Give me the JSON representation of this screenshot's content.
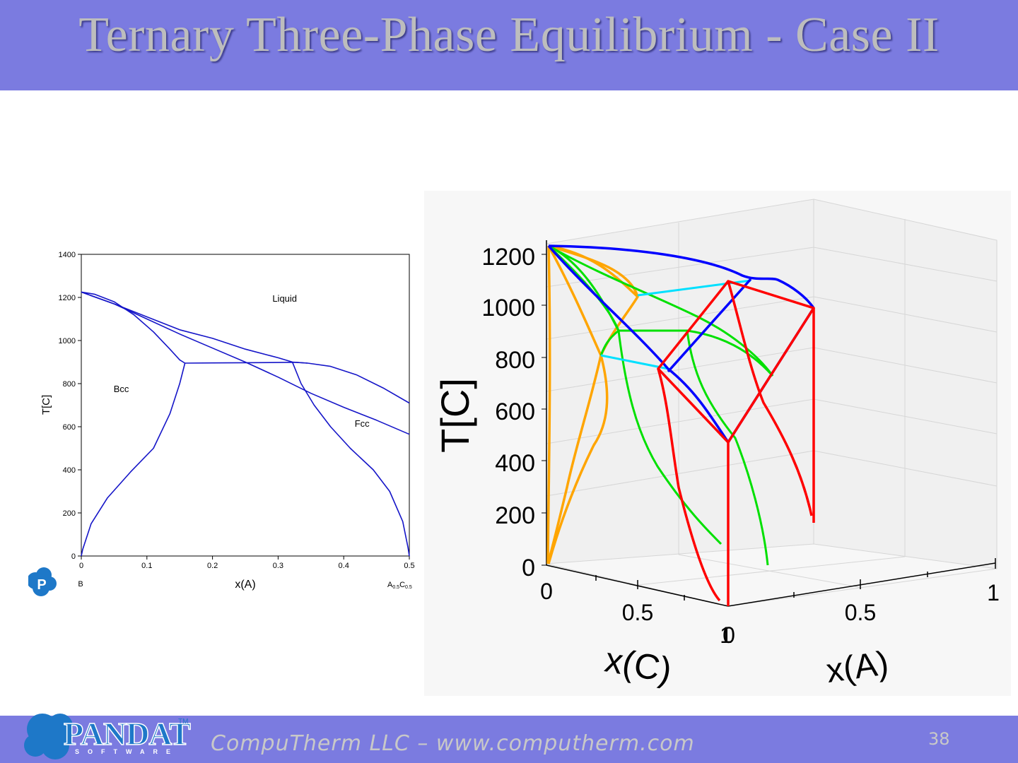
{
  "slide": {
    "title": "Ternary Three-Phase Equilibrium - Case II",
    "footer_text": "CompuTherm LLC – www.computherm.com",
    "page_number": "38",
    "logo": {
      "text": "PANDAT",
      "sub": "SOFTWARE",
      "tm": "TM"
    }
  },
  "chart_data": [
    {
      "type": "line",
      "xlabel": "x(A)",
      "ylabel": "T[C]",
      "xlim": [
        0,
        0.5
      ],
      "ylim": [
        0,
        1400
      ],
      "x_ticks": [
        "0",
        "0.1",
        "0.2",
        "0.3",
        "0.4",
        "0.5"
      ],
      "y_ticks": [
        "0",
        "200",
        "400",
        "600",
        "800",
        "1000",
        "1200",
        "1400"
      ],
      "end_labels": {
        "left": "B",
        "right_base": "A",
        "right_sub1": "0.5",
        "right_mid": "C",
        "right_sub2": "0.5"
      },
      "region_labels": [
        {
          "text": "Liquid",
          "x": 0.31,
          "y": 1180
        },
        {
          "text": "Bcc",
          "x": 0.061,
          "y": 760
        },
        {
          "text": "Fcc",
          "x": 0.428,
          "y": 600
        }
      ],
      "color": "#1515c8",
      "series": [
        {
          "points": [
            [
              0,
              1225
            ],
            [
              0.05,
              1170
            ],
            [
              0.1,
              1100
            ],
            [
              0.15,
              1030
            ],
            [
              0.2,
              965
            ],
            [
              0.25,
              900
            ],
            [
              0.3,
              830
            ],
            [
              0.35,
              755
            ],
            [
              0.4,
              690
            ],
            [
              0.45,
              630
            ],
            [
              0.5,
              565
            ]
          ]
        },
        {
          "points": [
            [
              0,
              1225
            ],
            [
              0.02,
              1215
            ],
            [
              0.05,
              1180
            ],
            [
              0.08,
              1120
            ],
            [
              0.11,
              1040
            ],
            [
              0.135,
              960
            ],
            [
              0.15,
              910
            ],
            [
              0.158,
              895
            ]
          ]
        },
        {
          "points": [
            [
              0,
              1225
            ],
            [
              0.05,
              1170
            ],
            [
              0.1,
              1110
            ],
            [
              0.15,
              1050
            ],
            [
              0.2,
              1010
            ],
            [
              0.25,
              960
            ],
            [
              0.3,
              920
            ],
            [
              0.322,
              900
            ],
            [
              0.345,
              895
            ]
          ]
        },
        {
          "points": [
            [
              0.158,
              895
            ],
            [
              0.2,
              896
            ],
            [
              0.25,
              897
            ],
            [
              0.3,
              898
            ],
            [
              0.325,
              899
            ],
            [
              0.345,
              895
            ]
          ]
        },
        {
          "points": [
            [
              0.158,
              895
            ],
            [
              0.15,
              800
            ],
            [
              0.135,
              660
            ],
            [
              0.11,
              500
            ],
            [
              0.075,
              390
            ],
            [
              0.04,
              270
            ],
            [
              0.015,
              150
            ],
            [
              0.002,
              30
            ],
            [
              0,
              0
            ]
          ]
        },
        {
          "points": [
            [
              0.322,
              898
            ],
            [
              0.335,
              800
            ],
            [
              0.355,
              700
            ],
            [
              0.38,
              600
            ],
            [
              0.41,
              500
            ],
            [
              0.445,
              400
            ],
            [
              0.47,
              300
            ],
            [
              0.49,
              160
            ],
            [
              0.498,
              40
            ],
            [
              0.5,
              0
            ]
          ]
        },
        {
          "points": [
            [
              0.345,
              895
            ],
            [
              0.38,
              880
            ],
            [
              0.42,
              840
            ],
            [
              0.46,
              780
            ],
            [
              0.5,
              710
            ]
          ]
        }
      ]
    },
    {
      "type": "line",
      "xlabel": "x(A)",
      "ylabel": "T[C]",
      "zlabel": "x(C)",
      "ylim": [
        0,
        1200
      ],
      "y_ticks": [
        "0",
        "200",
        "400",
        "600",
        "800",
        "1000",
        "1200"
      ],
      "xa_ticks": [
        "0.5",
        "1"
      ],
      "xc_ticks": [
        "0",
        "0.5",
        "1"
      ],
      "corner_label": "0",
      "grid": true,
      "series_colors": {
        "bcc": "#ffa500",
        "fcc": "#00e000",
        "liquid": "#0000ff",
        "tie_line": "#00e0ff",
        "phase_boundary": "#ff0000"
      }
    }
  ]
}
